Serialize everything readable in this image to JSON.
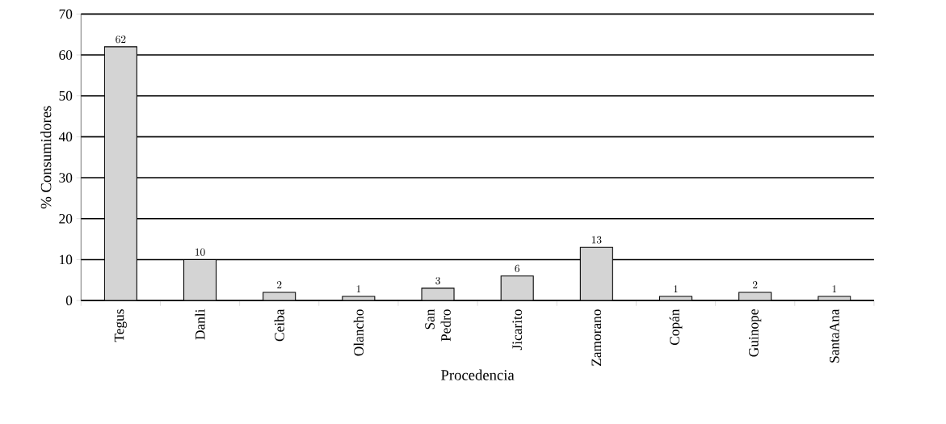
{
  "chart_data": {
    "type": "bar",
    "xlabel": "Procedencia",
    "ylabel": "% Consumidores",
    "categories": [
      "Tegus",
      "Danli",
      "Ceiba",
      "Olancho",
      "San Pedro",
      "Jicarito",
      "Zamorano",
      "Copán",
      "Guinope",
      "SantaAna"
    ],
    "values": [
      62,
      10,
      2,
      1,
      3,
      6,
      13,
      1,
      2,
      1
    ],
    "color": "#d4d4d4",
    "ylim": [
      0,
      70
    ],
    "yticks": [
      0,
      10,
      20,
      30,
      40,
      50,
      60,
      70
    ],
    "grid": "y",
    "data_labels": true
  }
}
